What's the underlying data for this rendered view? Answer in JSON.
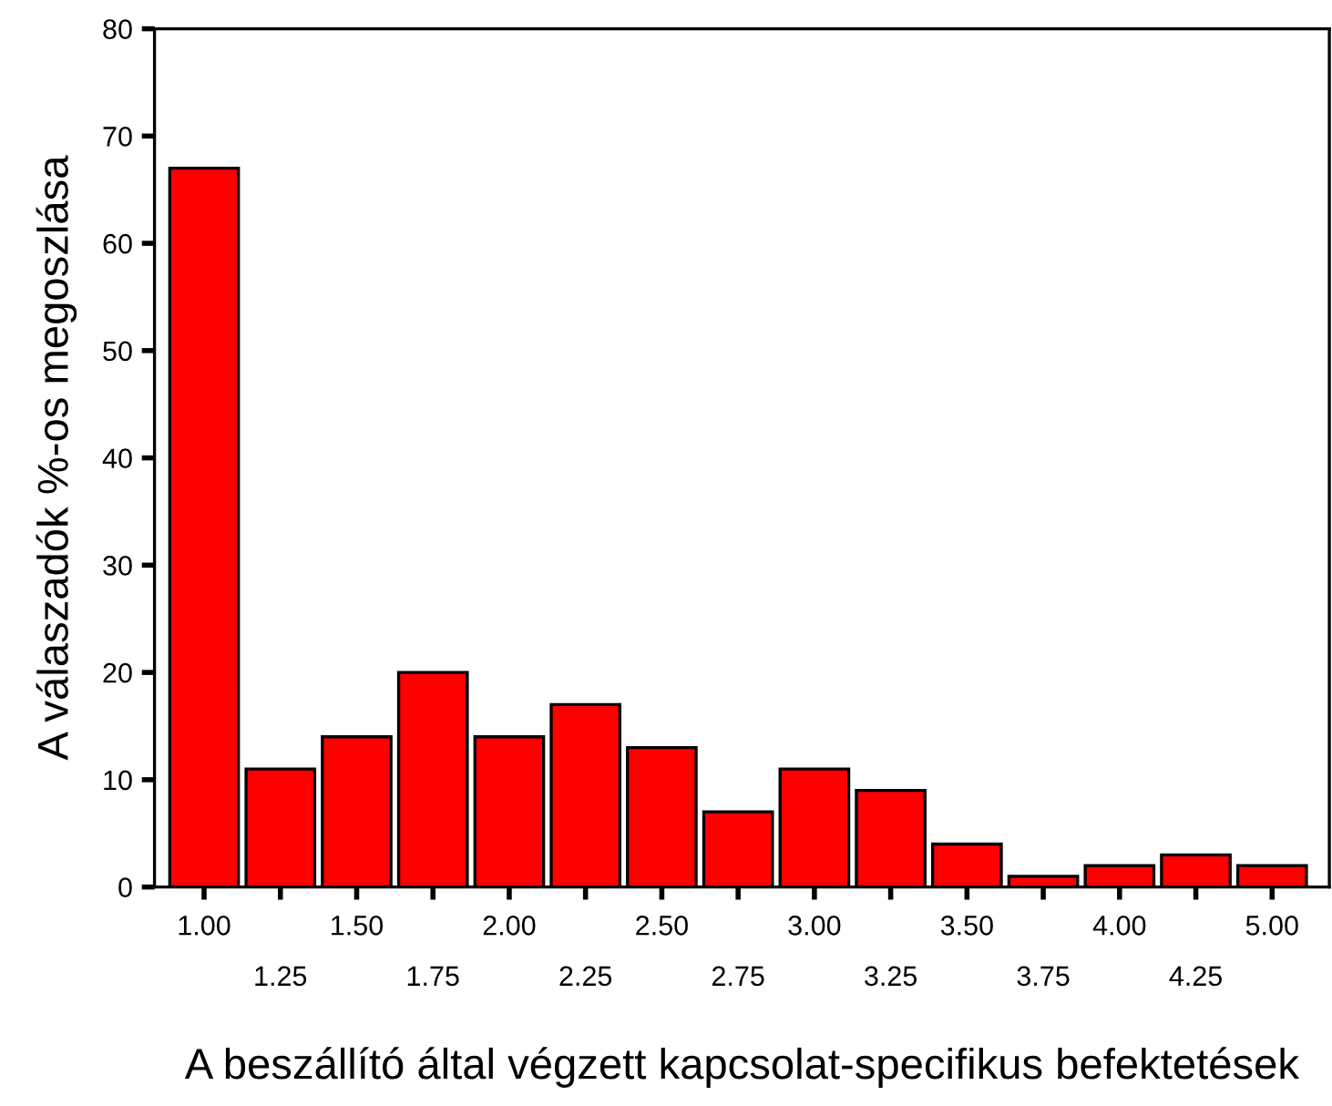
{
  "chart_data": {
    "type": "bar",
    "xlabel": "A beszállító által végzett kapcsolat-specifikus befektetések",
    "ylabel": "A válaszadók %-os megoszlása",
    "categories": [
      "1.00",
      "1.25",
      "1.50",
      "1.75",
      "2.00",
      "2.25",
      "2.50",
      "2.75",
      "3.00",
      "3.25",
      "3.50",
      "3.75",
      "4.00",
      "4.25",
      "5.00"
    ],
    "values": [
      67,
      11,
      14,
      20,
      14,
      17,
      13,
      7,
      11,
      9,
      4,
      1,
      2,
      3,
      2
    ],
    "color": "#ff0000",
    "ylim": [
      0,
      80
    ],
    "yticks": [
      0,
      10,
      20,
      30,
      40,
      50,
      60,
      70,
      80
    ],
    "grid": false
  }
}
